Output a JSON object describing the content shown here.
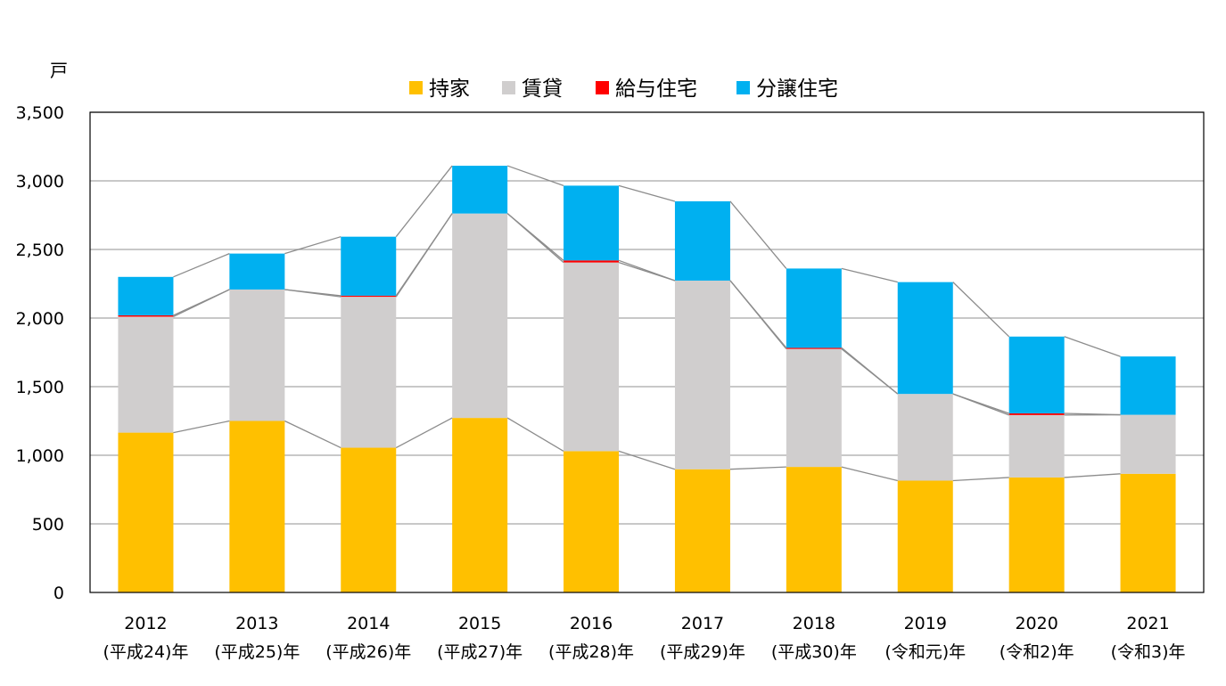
{
  "chart_data": {
    "type": "bar",
    "stacked": true,
    "ylabel": "戸",
    "ylim": [
      0,
      3500
    ],
    "yticks": [
      0,
      500,
      1000,
      1500,
      2000,
      2500,
      3000,
      3500
    ],
    "ytick_labels": [
      "0",
      "500",
      "1,000",
      "1,500",
      "2,000",
      "2,500",
      "3,000",
      "3,500"
    ],
    "grid": true,
    "legend_position": "top-center",
    "series_lines": true,
    "categories": [
      {
        "year": "2012",
        "era": "(平成24)年"
      },
      {
        "year": "2013",
        "era": "(平成25)年"
      },
      {
        "year": "2014",
        "era": "(平成26)年"
      },
      {
        "year": "2015",
        "era": "(平成27)年"
      },
      {
        "year": "2016",
        "era": "(平成28)年"
      },
      {
        "year": "2017",
        "era": "(平成29)年"
      },
      {
        "year": "2018",
        "era": "(平成30)年"
      },
      {
        "year": "2019",
        "era": "(令和元)年"
      },
      {
        "year": "2020",
        "era": "(令和2)年"
      },
      {
        "year": "2021",
        "era": "(令和3)年"
      }
    ],
    "series": [
      {
        "name": "持家",
        "color": "#FFC000",
        "values": [
          1165,
          1250,
          1055,
          1272,
          1030,
          898,
          915,
          815,
          838,
          865
        ]
      },
      {
        "name": "賃貸",
        "color": "#D0CECE",
        "values": [
          845,
          958,
          1100,
          1490,
          1375,
          1375,
          860,
          632,
          455,
          430
        ]
      },
      {
        "name": "給与住宅",
        "color": "#FF0000",
        "values": [
          10,
          0,
          8,
          0,
          15,
          0,
          8,
          0,
          12,
          0
        ]
      },
      {
        "name": "分譲住宅",
        "color": "#00B0F0",
        "values": [
          280,
          262,
          430,
          348,
          545,
          578,
          578,
          815,
          560,
          425
        ]
      }
    ]
  }
}
